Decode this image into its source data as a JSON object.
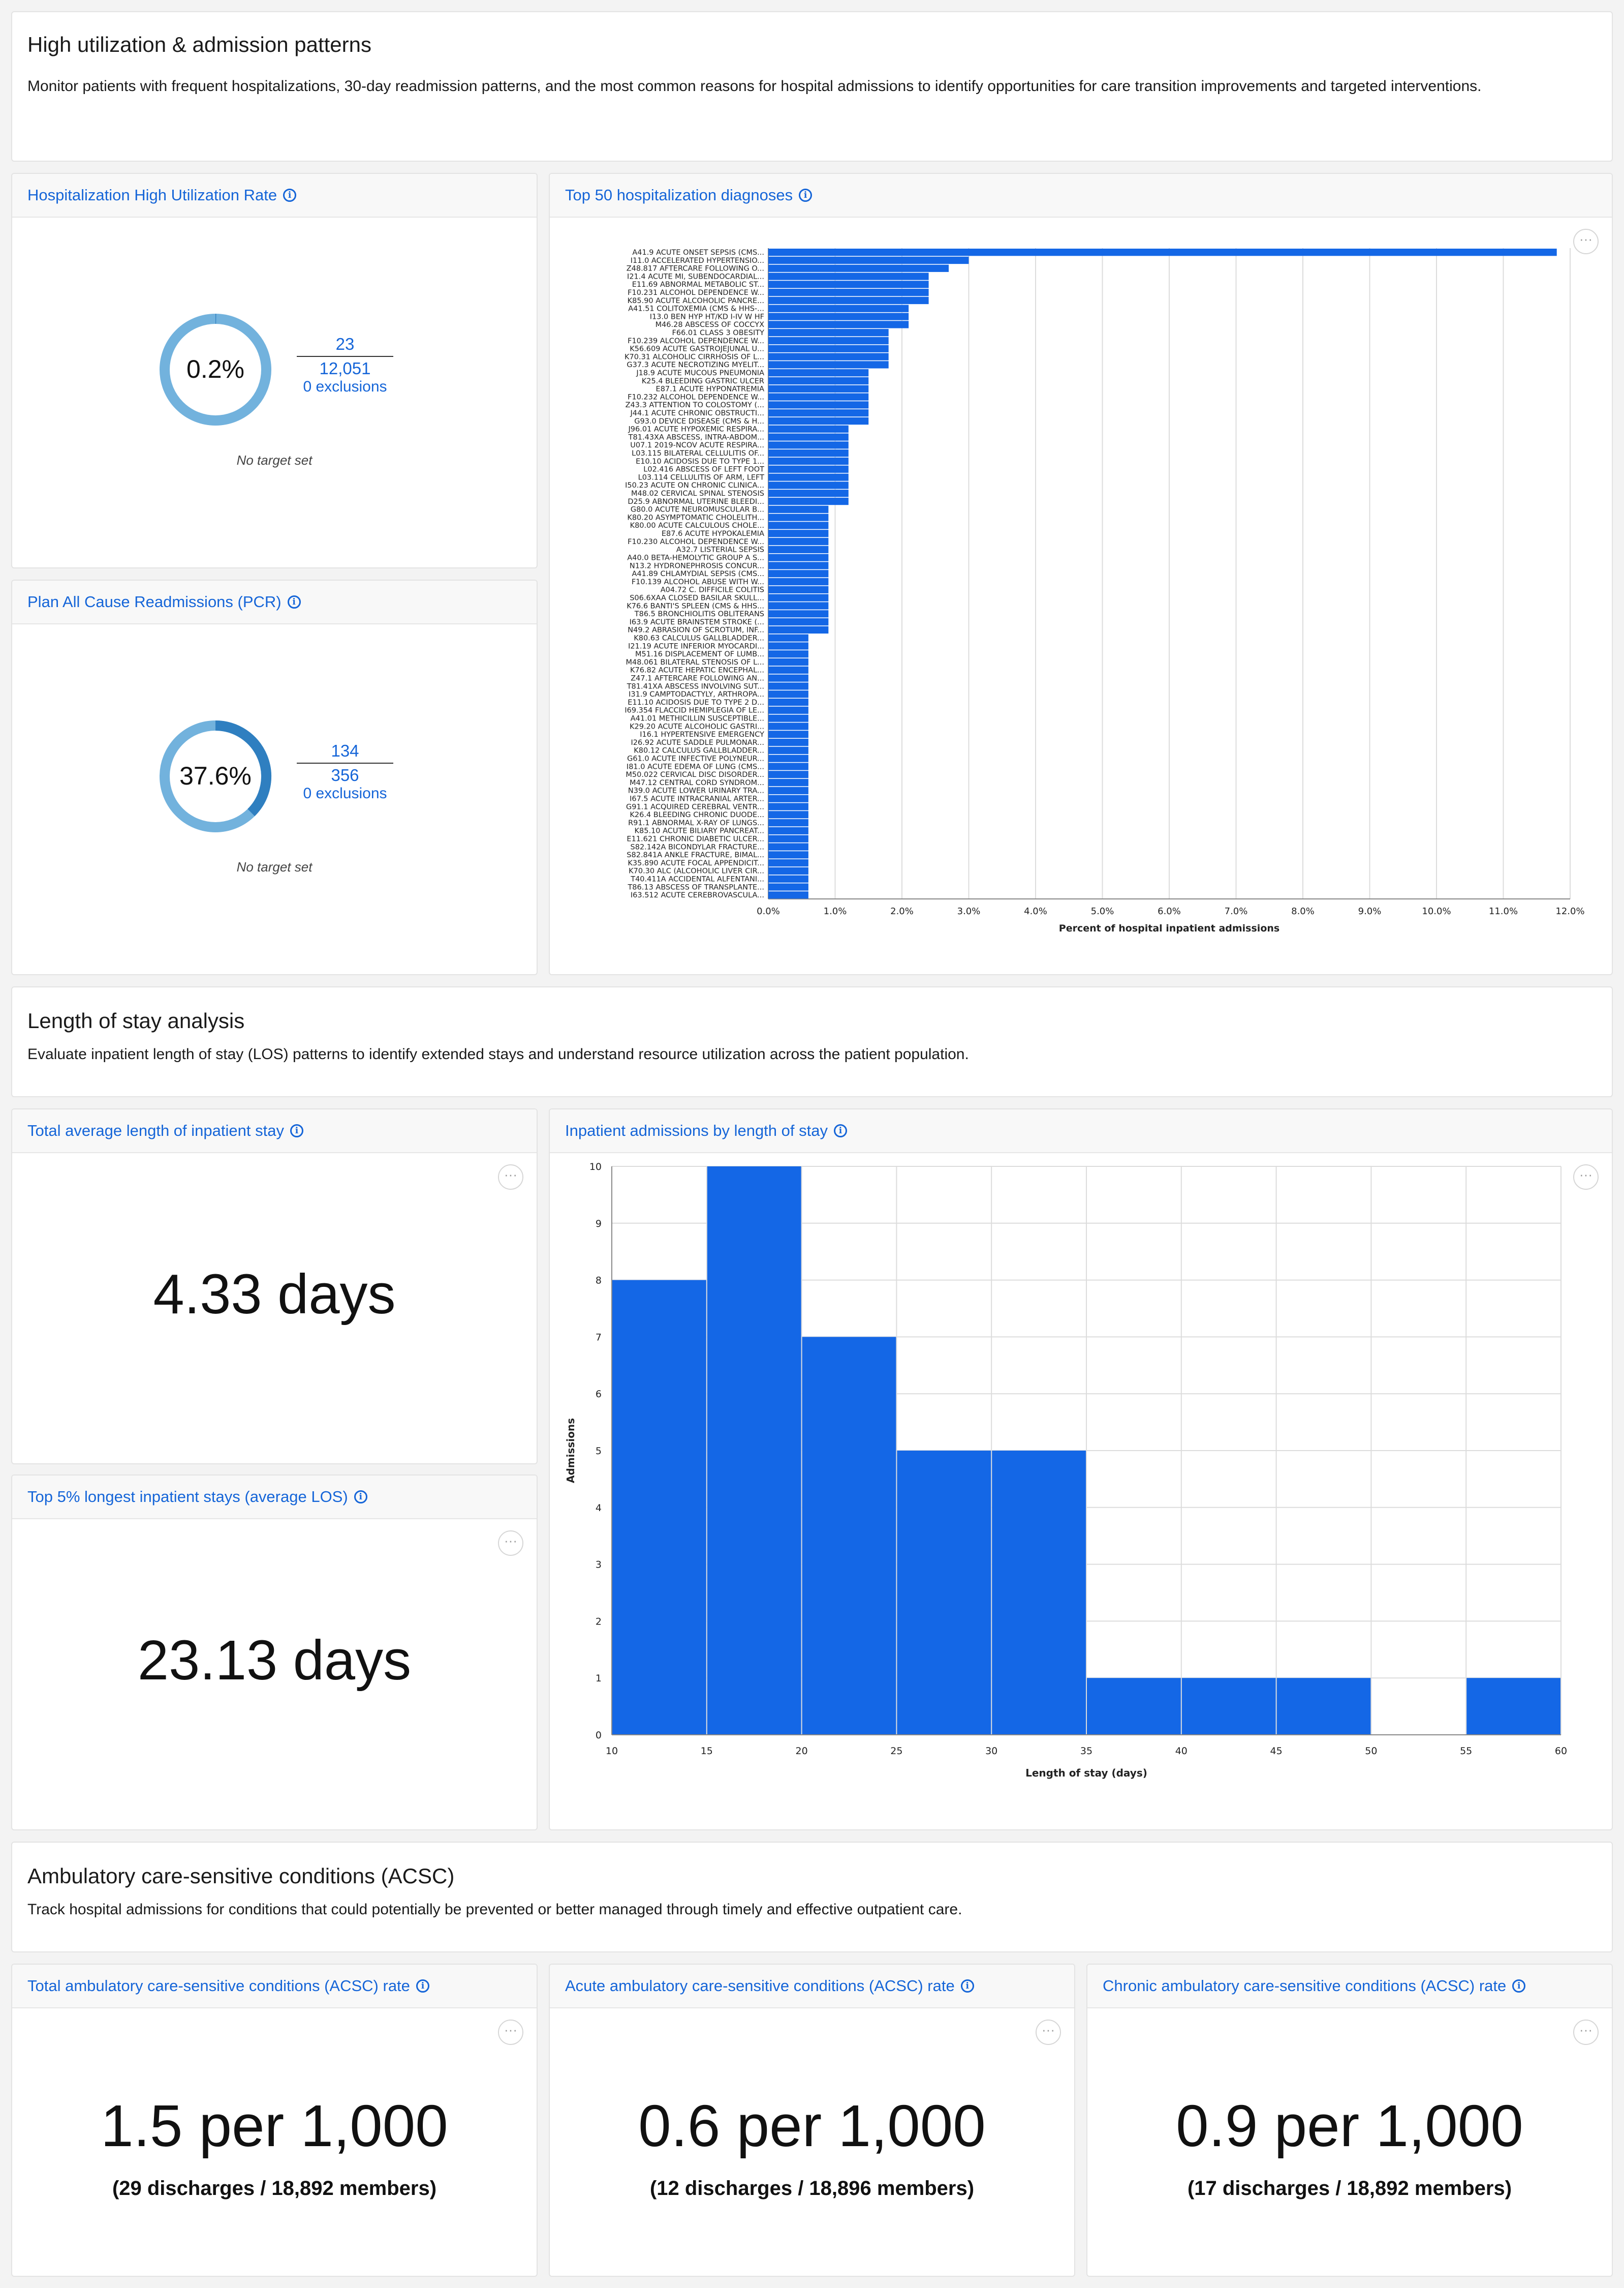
{
  "sections": {
    "utilization": {
      "title": "High utilization & admission patterns",
      "description": "Monitor patients with frequent hospitalizations, 30-day readmission patterns, and the most common reasons for hospital admissions to identify opportunities for care transition improvements and targeted interventions."
    },
    "los": {
      "title": "Length of stay analysis",
      "description": "Evaluate inpatient length of stay (LOS) patterns to identify extended stays and understand resource utilization across the patient population."
    },
    "acsc": {
      "title": "Ambulatory care-sensitive conditions (ACSC)",
      "description": "Track hospital admissions for conditions that could potentially be prevented or better managed through timely and effective outpatient care."
    }
  },
  "cards": {
    "high_util": {
      "title": "Hospitalization High Utilization Rate",
      "rate": "0.2%",
      "rate_fraction": 0.0019,
      "numerator": "23",
      "denominator": "12,051",
      "exclusions": "0 exclusions",
      "target": "No target set"
    },
    "pcr": {
      "title": "Plan All Cause Readmissions (PCR)",
      "rate": "37.6%",
      "rate_fraction": 0.376,
      "numerator": "134",
      "denominator": "356",
      "exclusions": "0 exclusions",
      "target": "No target set"
    },
    "top50": {
      "title": "Top 50 hospitalization diagnoses"
    },
    "avg_los": {
      "title": "Total average length of inpatient stay",
      "value": "4.33 days"
    },
    "top5_los": {
      "title": "Top 5% longest inpatient stays (average LOS)",
      "value": "23.13 days"
    },
    "los_hist": {
      "title": "Inpatient admissions by length of stay"
    },
    "acsc_total": {
      "title": "Total ambulatory care-sensitive conditions (ACSC) rate",
      "value": "1.5 per 1,000",
      "detail": "(29 discharges / 18,892 members)"
    },
    "acsc_acute": {
      "title": "Acute ambulatory care-sensitive conditions (ACSC) rate",
      "value": "0.6 per 1,000",
      "detail": "(12 discharges / 18,896 members)"
    },
    "acsc_chronic": {
      "title": "Chronic ambulatory care-sensitive conditions (ACSC) rate",
      "value": "0.9 per 1,000",
      "detail": "(17 discharges / 18,892 members)"
    }
  },
  "colors": {
    "accent": "#1565d8",
    "bar": "#1467e6",
    "donut_track": "#72b2dd",
    "donut_fill": "#2f7fc0"
  },
  "icons": {
    "info": "info-icon",
    "more": "ellipsis-icon"
  },
  "chart_data": [
    {
      "type": "bar",
      "orientation": "horizontal",
      "xlabel": "Percent of hospital inpatient admissions",
      "x_ticks": [
        "0.0%",
        "1.0%",
        "2.0%",
        "3.0%",
        "4.0%",
        "5.0%",
        "6.0%",
        "7.0%",
        "8.0%",
        "9.0%",
        "10.0%",
        "11.0%",
        "12.0%"
      ],
      "xlim": [
        0,
        12
      ],
      "grid": true,
      "categories": [
        "A41.9 ACUTE ONSET SEPSIS (CMS...",
        "I11.0 ACCELERATED HYPERTENSIO...",
        "Z48.817 AFTERCARE FOLLOWING O...",
        "I21.4 ACUTE MI, SUBENDOCARDIAL...",
        "E11.69 ABNORMAL METABOLIC ST...",
        "F10.231 ALCOHOL DEPENDENCE W...",
        "K85.90 ACUTE ALCOHOLIC PANCRE...",
        "A41.51 COLITOXEMIA (CMS & HHS-...",
        "I13.0 BEN HYP HT/KD I-IV W HF",
        "M46.28 ABSCESS OF COCCYX",
        "F66.01 CLASS 3 OBESITY",
        "F10.239 ALCOHOL DEPENDENCE W...",
        "K56.609 ACUTE GASTROJEJUNAL U...",
        "K70.31 ALCOHOLIC CIRRHOSIS OF L...",
        "G37.3 ACUTE NECROTIZING MYELIT...",
        "J18.9 ACUTE MUCOUS PNEUMONIA",
        "K25.4 BLEEDING GASTRIC ULCER",
        "E87.1 ACUTE HYPONATREMIA",
        "F10.232 ALCOHOL DEPENDENCE W...",
        "Z43.3 ATTENTION TO COLOSTOMY (...",
        "J44.1 ACUTE CHRONIC OBSTRUCTI...",
        "G93.0 DEVICE DISEASE (CMS & H...",
        "J96.01 ACUTE HYPOXEMIC RESPIRA...",
        "T81.43XA ABSCESS, INTRA-ABDOM...",
        "U07.1 2019-NCOV ACUTE RESPIRA...",
        "L03.115 BILATERAL CELLULITIS OF...",
        "E10.10 ACIDOSIS DUE TO TYPE 1...",
        "L02.416 ABSCESS OF LEFT FOOT",
        "L03.114 CELLULITIS OF ARM, LEFT",
        "I50.23 ACUTE ON CHRONIC CLINICA...",
        "M48.02 CERVICAL SPINAL STENOSIS",
        "D25.9 ABNORMAL UTERINE BLEEDI...",
        "G80.0 ACUTE NEUROMUSCULAR B...",
        "K80.20 ASYMPTOMATIC CHOLELITH...",
        "K80.00 ACUTE CALCULOUS CHOLE...",
        "E87.6 ACUTE HYPOKALEMIA",
        "F10.230 ALCOHOL DEPENDENCE W...",
        "A32.7 LISTERIAL SEPSIS",
        "A40.0 BETA-HEMOLYTIC GROUP A S...",
        "N13.2 HYDRONEPHROSIS CONCUR...",
        "A41.89 CHLAMYDIAL SEPSIS (CMS...",
        "F10.139 ALCOHOL ABUSE WITH W...",
        "A04.72 C. DIFFICILE COLITIS",
        "S06.6XAA CLOSED BASILAR SKULL...",
        "K76.6 BANTI'S SPLEEN (CMS & HHS...",
        "T86.5 BRONCHIOLITIS OBLITERANS",
        "I63.9 ACUTE BRAINSTEM STROKE (...",
        "N49.2 ABRASION OF SCROTUM, INF...",
        "K80.63 CALCULUS GALLBLADDER...",
        "I21.19 ACUTE INFERIOR MYOCARDI...",
        "M51.16 DISPLACEMENT OF LUMB...",
        "M48.061 BILATERAL STENOSIS OF L...",
        "K76.82 ACUTE HEPATIC ENCEPHAL...",
        "Z47.1 AFTERCARE FOLLOWING AN...",
        "T81.41XA ABSCESS INVOLVING SUT...",
        "I31.9 CAMPTODACTYLY, ARTHROPA...",
        "E11.10 ACIDOSIS DUE TO TYPE 2 D...",
        "I69.354 FLACCID HEMIPLEGIA OF LE...",
        "A41.01 METHICILLIN SUSCEPTIBLE...",
        "K29.20 ACUTE ALCOHOLIC GASTRI...",
        "I16.1 HYPERTENSIVE EMERGENCY",
        "I26.92 ACUTE SADDLE PULMONAR...",
        "K80.12 CALCULUS GALLBLADDER...",
        "G61.0 ACUTE INFECTIVE POLYNEUR...",
        "I81.0 ACUTE EDEMA OF LUNG (CMS...",
        "M50.022 CERVICAL DISC DISORDER...",
        "M47.12 CENTRAL CORD SYNDROM...",
        "N39.0 ACUTE LOWER URINARY TRA...",
        "I67.5 ACUTE INTRACRANIAL ARTER...",
        "G91.1 ACQUIRED CEREBRAL VENTR...",
        "K26.4 BLEEDING CHRONIC DUODE...",
        "R91.1 ABNORMAL X-RAY OF LUNGS...",
        "K85.10 ACUTE BILIARY PANCREAT...",
        "E11.621 CHRONIC DIABETIC ULCER...",
        "S82.142A BICONDYLAR FRACTURE...",
        "S82.841A ANKLE FRACTURE, BIMAL...",
        "K35.890 ACUTE FOCAL APPENDICIT...",
        "K70.30 ALC (ALCOHOLIC LIVER CIR...",
        "T40.411A ACCIDENTAL ALFENTANI...",
        "T86.13 ABSCESS OF TRANSPLANTE...",
        "I63.512 ACUTE CEREBROVASCULA..."
      ],
      "values": [
        11.8,
        3.0,
        2.7,
        2.4,
        2.4,
        2.4,
        2.4,
        2.1,
        2.1,
        2.1,
        1.8,
        1.8,
        1.8,
        1.8,
        1.8,
        1.5,
        1.5,
        1.5,
        1.5,
        1.5,
        1.5,
        1.5,
        1.2,
        1.2,
        1.2,
        1.2,
        1.2,
        1.2,
        1.2,
        1.2,
        1.2,
        1.2,
        0.9,
        0.9,
        0.9,
        0.9,
        0.9,
        0.9,
        0.9,
        0.9,
        0.9,
        0.9,
        0.9,
        0.9,
        0.9,
        0.9,
        0.9,
        0.9,
        0.6,
        0.6,
        0.6,
        0.6,
        0.6,
        0.6,
        0.6,
        0.6,
        0.6,
        0.6,
        0.6,
        0.6,
        0.6,
        0.6,
        0.6,
        0.6,
        0.6,
        0.6,
        0.6,
        0.6,
        0.6,
        0.6,
        0.6,
        0.6,
        0.6,
        0.6,
        0.6,
        0.6,
        0.6,
        0.6,
        0.6,
        0.6,
        0.6
      ]
    },
    {
      "type": "bar",
      "subtype": "histogram",
      "xlabel": "Length of stay (days)",
      "ylabel": "Admissions",
      "bins": [
        [
          10,
          15
        ],
        [
          15,
          20
        ],
        [
          20,
          25
        ],
        [
          25,
          30
        ],
        [
          30,
          35
        ],
        [
          35,
          40
        ],
        [
          40,
          45
        ],
        [
          45,
          50
        ],
        [
          50,
          55
        ],
        [
          55,
          60
        ]
      ],
      "values": [
        8,
        10,
        7,
        5,
        5,
        1,
        1,
        1,
        0,
        1
      ],
      "x_ticks": [
        10,
        15,
        20,
        25,
        30,
        35,
        40,
        45,
        50,
        55,
        60
      ],
      "y_ticks": [
        0,
        1,
        2,
        3,
        4,
        5,
        6,
        7,
        8,
        9,
        10
      ],
      "xlim": [
        10,
        60
      ],
      "ylim": [
        0,
        10
      ],
      "grid": true
    }
  ]
}
